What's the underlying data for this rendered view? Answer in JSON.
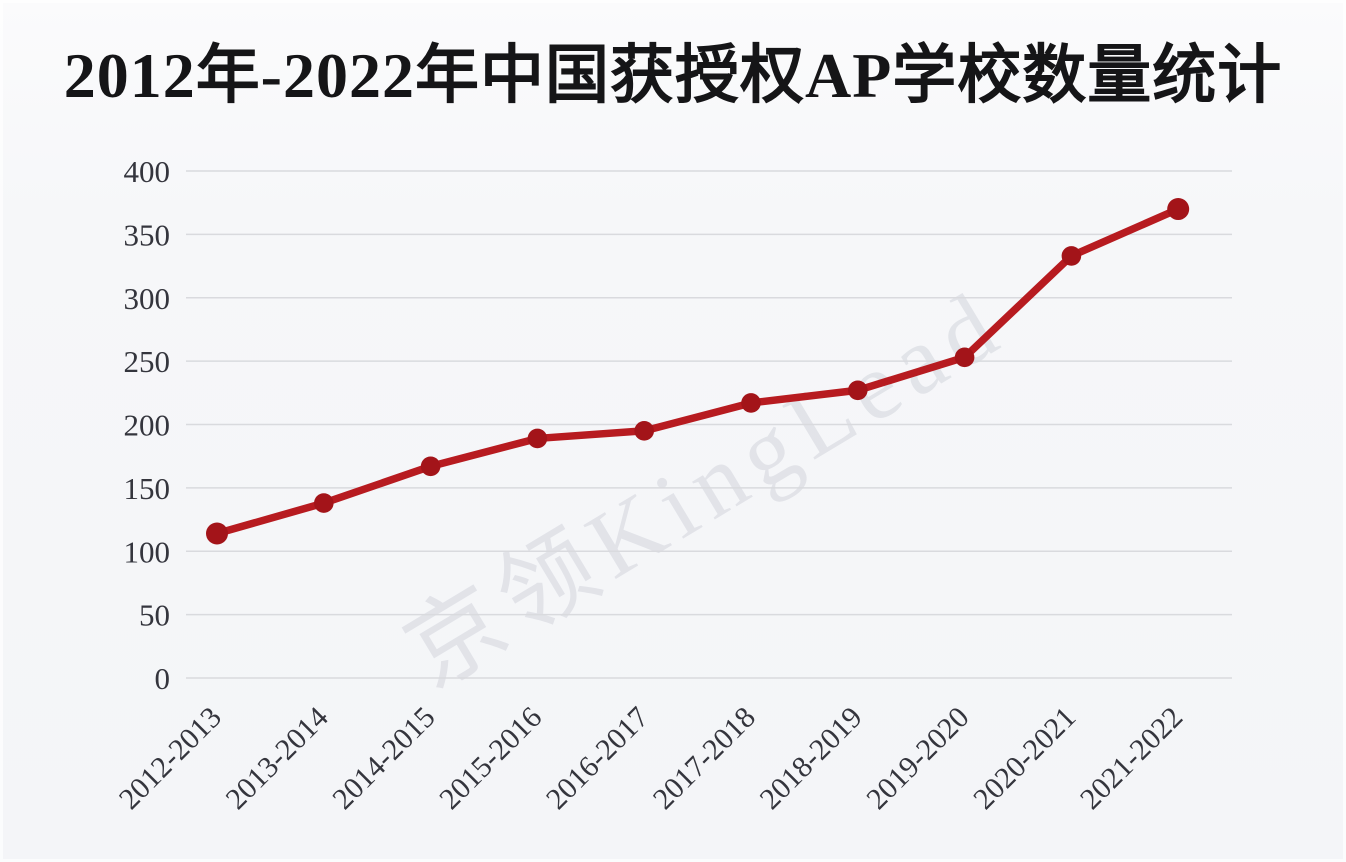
{
  "title": "2012年-2022年中国获授权AP学校数量统计",
  "watermark": {
    "text": "京领KingLead"
  },
  "colors": {
    "background": "#f5f6f9",
    "line": "#b71b20",
    "point": "#a31419",
    "grid": "#d9dade",
    "axis_text": "#34353d",
    "title_text": "#151517"
  },
  "chart_data": {
    "type": "line",
    "title": "2012年-2022年中国获授权AP学校数量统计",
    "categories": [
      "2012-2013",
      "2013-2014",
      "2014-2015",
      "2015-2016",
      "2016-2017",
      "2017-2018",
      "2018-2019",
      "2019-2020",
      "2020-2021",
      "2021-2022"
    ],
    "values": [
      114,
      138,
      167,
      189,
      195,
      217,
      227,
      253,
      333,
      370
    ],
    "xlabel": "",
    "ylabel": "",
    "ylim": [
      0,
      400
    ],
    "yticks": [
      0,
      50,
      100,
      150,
      200,
      250,
      300,
      350,
      400
    ],
    "grid": "horizontal",
    "legend": "none",
    "x_tick_rotation": -45
  }
}
